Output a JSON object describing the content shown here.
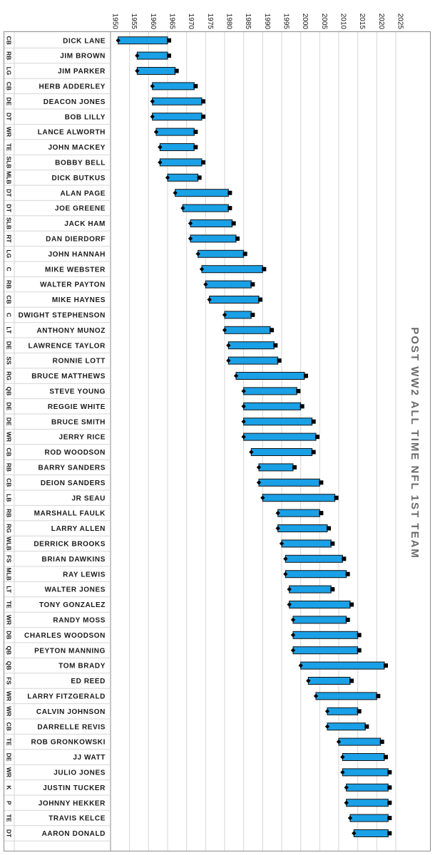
{
  "chart_data": {
    "type": "bar",
    "title": "POST WW2 ALL TIME NFL 1ST TEAM",
    "xlabel": "",
    "ylabel": "",
    "xlim": [
      1950,
      2025
    ],
    "x_ticks": [
      "1950",
      "1955",
      "1960",
      "1965",
      "1970",
      "1975",
      "1980",
      "1985",
      "1990",
      "1995",
      "2000",
      "2005",
      "2010",
      "2015",
      "2020",
      "2025"
    ],
    "grid": true,
    "colors": {
      "bar": "#1aa0e6",
      "bar_border": "#111111",
      "marker": "#000000",
      "title": "#6b6b6b"
    },
    "players": [
      {
        "name": "DICK LANE",
        "pos": "CB",
        "start": 1952,
        "end": 1965
      },
      {
        "name": "JIM BROWN",
        "pos": "RB",
        "start": 1957,
        "end": 1965
      },
      {
        "name": "JIM PARKER",
        "pos": "LG",
        "start": 1957,
        "end": 1967
      },
      {
        "name": "HERB ADDERLEY",
        "pos": "CB",
        "start": 1961,
        "end": 1972
      },
      {
        "name": "DEACON JONES",
        "pos": "DE",
        "start": 1961,
        "end": 1974
      },
      {
        "name": "BOB LILLY",
        "pos": "DT",
        "start": 1961,
        "end": 1974
      },
      {
        "name": "LANCE ALWORTH",
        "pos": "WR",
        "start": 1962,
        "end": 1972
      },
      {
        "name": "JOHN MACKEY",
        "pos": "TE",
        "start": 1963,
        "end": 1972
      },
      {
        "name": "BOBBY BELL",
        "pos": "SLB",
        "start": 1963,
        "end": 1974
      },
      {
        "name": "DICK BUTKUS",
        "pos": "MLB",
        "start": 1965,
        "end": 1973
      },
      {
        "name": "ALAN PAGE",
        "pos": "DT",
        "start": 1967,
        "end": 1981
      },
      {
        "name": "JOE GREENE",
        "pos": "DT",
        "start": 1969,
        "end": 1981
      },
      {
        "name": "JACK HAM",
        "pos": "SLB",
        "start": 1971,
        "end": 1982
      },
      {
        "name": "DAN DIERDORF",
        "pos": "RT",
        "start": 1971,
        "end": 1983
      },
      {
        "name": "JOHN HANNAH",
        "pos": "LG",
        "start": 1973,
        "end": 1985
      },
      {
        "name": "MIKE WEBSTER",
        "pos": "C",
        "start": 1974,
        "end": 1990
      },
      {
        "name": "WALTER PAYTON",
        "pos": "RB",
        "start": 1975,
        "end": 1987
      },
      {
        "name": "MIKE HAYNES",
        "pos": "CB",
        "start": 1976,
        "end": 1989
      },
      {
        "name": "DWIGHT STEPHENSON",
        "pos": "C",
        "start": 1980,
        "end": 1987
      },
      {
        "name": "ANTHONY MUNOZ",
        "pos": "LT",
        "start": 1980,
        "end": 1992
      },
      {
        "name": "LAWRENCE TAYLOR",
        "pos": "DE",
        "start": 1981,
        "end": 1993
      },
      {
        "name": "RONNIE LOTT",
        "pos": "SS",
        "start": 1981,
        "end": 1994
      },
      {
        "name": "BRUCE MATTHEWS",
        "pos": "RG",
        "start": 1983,
        "end": 2001
      },
      {
        "name": "STEVE YOUNG",
        "pos": "QB",
        "start": 1985,
        "end": 1999
      },
      {
        "name": "REGGIE WHITE",
        "pos": "DE",
        "start": 1985,
        "end": 2000
      },
      {
        "name": "BRUCE SMITH",
        "pos": "DE",
        "start": 1985,
        "end": 2003
      },
      {
        "name": "JERRY RICE",
        "pos": "WR",
        "start": 1985,
        "end": 2004
      },
      {
        "name": "ROD WOODSON",
        "pos": "CB",
        "start": 1987,
        "end": 2003
      },
      {
        "name": "BARRY SANDERS",
        "pos": "RB",
        "start": 1989,
        "end": 1998
      },
      {
        "name": "DEION SANDERS",
        "pos": "CB",
        "start": 1989,
        "end": 2005
      },
      {
        "name": "JR SEAU",
        "pos": "LB",
        "start": 1990,
        "end": 2009
      },
      {
        "name": "MARSHALL FAULK",
        "pos": "RB",
        "start": 1994,
        "end": 2005
      },
      {
        "name": "LARRY ALLEN",
        "pos": "RG",
        "start": 1994,
        "end": 2007
      },
      {
        "name": "DERRICK BROOKS",
        "pos": "WLB",
        "start": 1995,
        "end": 2008
      },
      {
        "name": "BRIAN DAWKINS",
        "pos": "FS",
        "start": 1996,
        "end": 2011
      },
      {
        "name": "RAY LEWIS",
        "pos": "MLB",
        "start": 1996,
        "end": 2012
      },
      {
        "name": "WALTER JONES",
        "pos": "LT",
        "start": 1997,
        "end": 2008
      },
      {
        "name": "TONY GONZALEZ",
        "pos": "TE",
        "start": 1997,
        "end": 2013
      },
      {
        "name": "RANDY MOSS",
        "pos": "WR",
        "start": 1998,
        "end": 2012
      },
      {
        "name": "CHARLES WOODSON",
        "pos": "DB",
        "start": 1998,
        "end": 2015
      },
      {
        "name": "PEYTON MANNING",
        "pos": "QB",
        "start": 1998,
        "end": 2015
      },
      {
        "name": "TOM BRADY",
        "pos": "QB",
        "start": 2000,
        "end": 2022
      },
      {
        "name": "ED REED",
        "pos": "FS",
        "start": 2002,
        "end": 2013
      },
      {
        "name": "LARRY FITZGERALD",
        "pos": "WR",
        "start": 2004,
        "end": 2020
      },
      {
        "name": "CALVIN JOHNSON",
        "pos": "WR",
        "start": 2007,
        "end": 2015
      },
      {
        "name": "DARRELLE REVIS",
        "pos": "CB",
        "start": 2007,
        "end": 2017
      },
      {
        "name": "ROB GRONKOWSKI",
        "pos": "TE",
        "start": 2010,
        "end": 2021
      },
      {
        "name": "JJ WATT",
        "pos": "DE",
        "start": 2011,
        "end": 2022
      },
      {
        "name": "JULIO JONES",
        "pos": "WR",
        "start": 2011,
        "end": 2023
      },
      {
        "name": "JUSTIN TUCKER",
        "pos": "K",
        "start": 2012,
        "end": 2023
      },
      {
        "name": "JOHNNY HEKKER",
        "pos": "P",
        "start": 2012,
        "end": 2023
      },
      {
        "name": "TRAVIS KELCE",
        "pos": "TE",
        "start": 2013,
        "end": 2023
      },
      {
        "name": "AARON DONALD",
        "pos": "DT",
        "start": 2014,
        "end": 2023
      }
    ]
  }
}
